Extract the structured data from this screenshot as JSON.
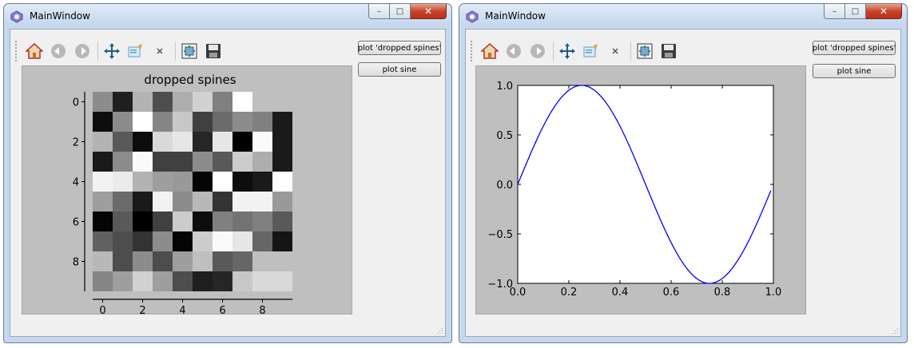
{
  "windows": [
    {
      "id": "left",
      "title": "MainWindow",
      "caption_buttons": {
        "minimize": "–",
        "maximize": "□",
        "close": "✕"
      },
      "toolbar_icons": [
        "home-icon",
        "back-icon",
        "forward-icon",
        "pan-icon",
        "zoom-icon",
        "close-x-icon",
        "configure-subplots-icon",
        "save-icon"
      ],
      "buttons": {
        "dropped_spines": "plot 'dropped spines'",
        "sine": "plot sine"
      }
    },
    {
      "id": "right",
      "title": "MainWindow",
      "caption_buttons": {
        "minimize": "–",
        "maximize": "□",
        "close": "✕"
      },
      "toolbar_icons": [
        "home-icon",
        "back-icon",
        "forward-icon",
        "pan-icon",
        "zoom-icon",
        "close-x-icon",
        "configure-subplots-icon",
        "save-icon"
      ],
      "buttons": {
        "dropped_spines": "plot 'dropped spines'",
        "sine": "plot sine"
      }
    }
  ],
  "chart_data": [
    {
      "type": "heatmap",
      "title": "dropped spines",
      "xlabel": "",
      "ylabel": "",
      "colormap": "gray",
      "x_ticks": [
        "0",
        "2",
        "4",
        "6",
        "8"
      ],
      "y_ticks": [
        "0",
        "2",
        "4",
        "6",
        "8"
      ],
      "values": [
        [
          0.55,
          0.12,
          0.7,
          0.3,
          0.68,
          0.82,
          0.5,
          1.0,
          0.75,
          0.75
        ],
        [
          0.05,
          0.55,
          1.0,
          0.52,
          0.78,
          0.25,
          0.42,
          0.55,
          0.5,
          0.1
        ],
        [
          0.7,
          0.35,
          0.05,
          0.85,
          0.9,
          0.15,
          0.9,
          0.0,
          0.98,
          0.1
        ],
        [
          0.1,
          0.55,
          0.98,
          0.25,
          0.25,
          0.55,
          0.35,
          0.8,
          0.68,
          0.1
        ],
        [
          0.95,
          0.92,
          0.7,
          0.62,
          0.6,
          0.02,
          1.0,
          0.05,
          0.1,
          1.0
        ],
        [
          0.62,
          0.42,
          0.1,
          0.95,
          0.55,
          0.72,
          0.2,
          0.95,
          0.95,
          0.6
        ],
        [
          0.02,
          0.35,
          0.0,
          0.25,
          0.8,
          0.05,
          0.5,
          0.45,
          0.5,
          0.35
        ],
        [
          0.38,
          0.3,
          0.2,
          0.55,
          0.02,
          0.8,
          0.98,
          0.9,
          0.4,
          0.08
        ],
        [
          0.72,
          0.3,
          0.55,
          0.3,
          0.62,
          0.75,
          0.35,
          0.4,
          0.75,
          0.75
        ],
        [
          0.52,
          0.62,
          0.82,
          0.62,
          0.3,
          0.12,
          0.15,
          0.78,
          0.85,
          0.85
        ]
      ]
    },
    {
      "type": "line",
      "title": "",
      "xlabel": "",
      "ylabel": "",
      "xlim": [
        0.0,
        1.0
      ],
      "ylim": [
        -1.0,
        1.0
      ],
      "x_ticks": [
        "0.0",
        "0.2",
        "0.4",
        "0.6",
        "0.8",
        "1.0"
      ],
      "y_ticks": [
        "1.0",
        "0.5",
        "0.0",
        "−0.5",
        "−1.0"
      ],
      "series": [
        {
          "function": "sin(2*pi*x)",
          "x_range": [
            0.0,
            0.99
          ],
          "color": "#0000ff"
        }
      ]
    }
  ]
}
